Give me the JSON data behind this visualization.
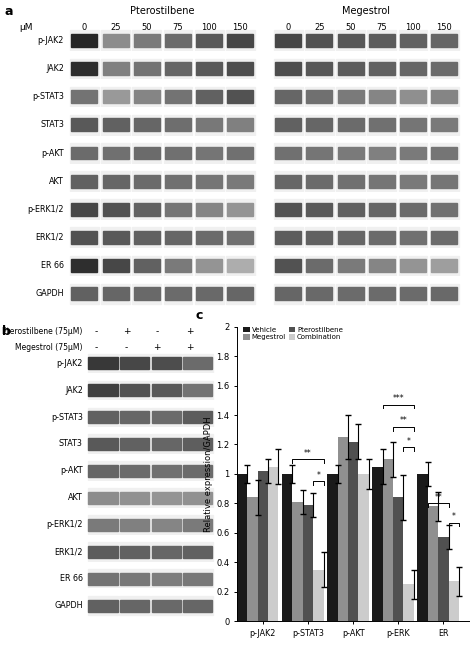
{
  "pterostilbene_label": "Pterostilbene",
  "megestrol_label": "Megestrol",
  "um_label": "μM",
  "concentrations": [
    "0",
    "25",
    "50",
    "75",
    "100",
    "150"
  ],
  "protein_labels": [
    "p-JAK2",
    "JAK2",
    "p-STAT3",
    "STAT3",
    "p-AKT",
    "AKT",
    "p-ERK1/2",
    "ERK1/2",
    "ER 66",
    "GAPDH"
  ],
  "combo_label_pt": "Pterostilbene (75μM)",
  "combo_label_mg": "Megestrol (75μM)",
  "combo_signs_pt": [
    "-",
    "+",
    "-",
    "+"
  ],
  "combo_signs_mg": [
    "-",
    "-",
    "+",
    "+"
  ],
  "bar_categories": [
    "p-JAK2",
    "p-STAT3",
    "p-AKT",
    "p-ERK",
    "ER"
  ],
  "bar_groups": [
    "Vehicle",
    "Megestrol",
    "Pterostilbene",
    "Combination"
  ],
  "bar_colors": [
    "#1a1a1a",
    "#909090",
    "#505050",
    "#cccccc"
  ],
  "bar_data": {
    "p-JAK2": [
      1.0,
      0.84,
      1.02,
      1.05
    ],
    "p-STAT3": [
      1.0,
      0.81,
      0.79,
      0.35
    ],
    "p-AKT": [
      1.0,
      1.25,
      1.22,
      1.0
    ],
    "p-ERK": [
      1.05,
      1.1,
      0.84,
      0.25
    ],
    "ER": [
      1.0,
      0.78,
      0.57,
      0.27
    ]
  },
  "bar_errors": {
    "p-JAK2": [
      0.06,
      0.12,
      0.08,
      0.12
    ],
    "p-STAT3": [
      0.06,
      0.08,
      0.08,
      0.12
    ],
    "p-AKT": [
      0.06,
      0.15,
      0.12,
      0.1
    ],
    "p-ERK": [
      0.12,
      0.12,
      0.15,
      0.1
    ],
    "ER": [
      0.08,
      0.1,
      0.08,
      0.1
    ]
  },
  "yticks": [
    0,
    0.2,
    0.4,
    0.6,
    0.8,
    1.0,
    1.2,
    1.4,
    1.6,
    1.8,
    2.0
  ],
  "ylabel": "Relative expression/GAPDH",
  "pt_blot_intensities": {
    "p-JAK2": [
      0.15,
      0.55,
      0.48,
      0.42,
      0.35,
      0.28
    ],
    "JAK2": [
      0.18,
      0.5,
      0.45,
      0.4,
      0.35,
      0.3
    ],
    "p-STAT3": [
      0.45,
      0.6,
      0.52,
      0.45,
      0.38,
      0.32
    ],
    "STAT3": [
      0.35,
      0.38,
      0.4,
      0.43,
      0.47,
      0.5
    ],
    "p-AKT": [
      0.42,
      0.44,
      0.42,
      0.44,
      0.46,
      0.44
    ],
    "AKT": [
      0.38,
      0.4,
      0.42,
      0.44,
      0.46,
      0.48
    ],
    "p-ERK1/2": [
      0.28,
      0.32,
      0.38,
      0.46,
      0.52,
      0.58
    ],
    "ERK1/2": [
      0.32,
      0.35,
      0.38,
      0.4,
      0.42,
      0.44
    ],
    "ER 66": [
      0.18,
      0.28,
      0.38,
      0.48,
      0.58,
      0.68
    ],
    "GAPDH": [
      0.38,
      0.4,
      0.41,
      0.42,
      0.41,
      0.4
    ]
  },
  "mg_blot_intensities": {
    "p-JAK2": [
      0.28,
      0.32,
      0.34,
      0.36,
      0.38,
      0.4
    ],
    "JAK2": [
      0.3,
      0.34,
      0.36,
      0.38,
      0.4,
      0.42
    ],
    "p-STAT3": [
      0.4,
      0.44,
      0.48,
      0.52,
      0.56,
      0.52
    ],
    "STAT3": [
      0.38,
      0.4,
      0.42,
      0.44,
      0.46,
      0.48
    ],
    "p-AKT": [
      0.44,
      0.46,
      0.48,
      0.5,
      0.48,
      0.46
    ],
    "AKT": [
      0.4,
      0.42,
      0.44,
      0.46,
      0.48,
      0.46
    ],
    "p-ERK1/2": [
      0.32,
      0.35,
      0.38,
      0.4,
      0.42,
      0.44
    ],
    "ERK1/2": [
      0.36,
      0.38,
      0.4,
      0.42,
      0.44,
      0.42
    ],
    "ER 66": [
      0.32,
      0.42,
      0.48,
      0.52,
      0.58,
      0.62
    ],
    "GAPDH": [
      0.4,
      0.41,
      0.42,
      0.42,
      0.42,
      0.41
    ]
  },
  "b_blot_intensities": {
    "p-JAK2": [
      0.22,
      0.28,
      0.3,
      0.42
    ],
    "JAK2": [
      0.25,
      0.32,
      0.35,
      0.45
    ],
    "p-STAT3": [
      0.38,
      0.4,
      0.42,
      0.36
    ],
    "STAT3": [
      0.35,
      0.38,
      0.4,
      0.37
    ],
    "p-AKT": [
      0.4,
      0.42,
      0.44,
      0.42
    ],
    "AKT": [
      0.55,
      0.57,
      0.58,
      0.57
    ],
    "p-ERK1/2": [
      0.48,
      0.5,
      0.52,
      0.48
    ],
    "ERK1/2": [
      0.36,
      0.38,
      0.4,
      0.38
    ],
    "ER 66": [
      0.45,
      0.47,
      0.49,
      0.47
    ],
    "GAPDH": [
      0.38,
      0.4,
      0.41,
      0.4
    ]
  }
}
